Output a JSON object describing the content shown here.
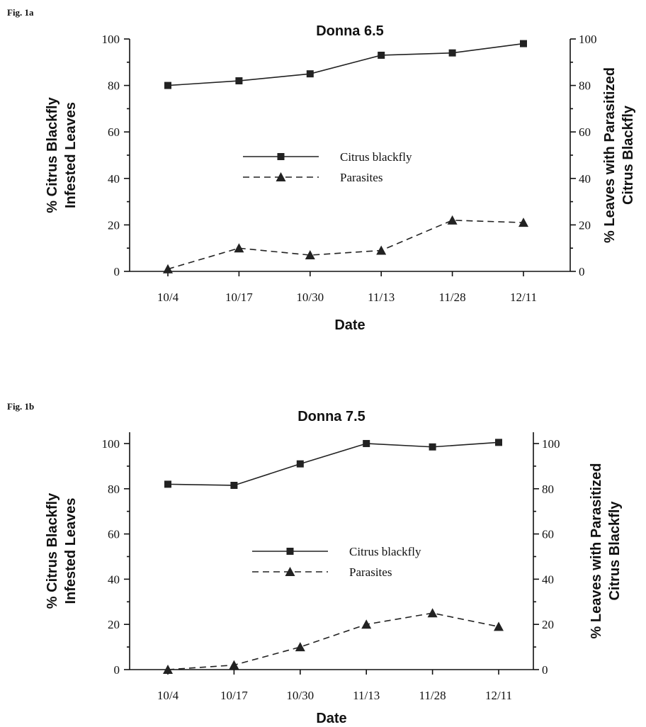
{
  "chart_data": [
    {
      "type": "line",
      "panel_label": "Fig. 1a",
      "title": "Donna 6.5",
      "xlabel": "Date",
      "ylabel_left": [
        "% Citrus Blackfly",
        "Infested Leaves"
      ],
      "ylabel_right": [
        "% Leaves with Parasitized",
        "Citrus Blackfly"
      ],
      "categories": [
        "10/4",
        "10/17",
        "10/30",
        "11/13",
        "11/28",
        "12/11"
      ],
      "ylim": [
        0,
        100
      ],
      "yticks": [
        0,
        20,
        40,
        60,
        80,
        100
      ],
      "series": [
        {
          "name": "Citrus blackfly",
          "axis": "left",
          "marker": "square",
          "dash": "solid",
          "values": [
            80,
            82,
            85,
            93,
            94,
            98
          ]
        },
        {
          "name": "Parasites",
          "axis": "right",
          "marker": "triangle",
          "dash": "dashed",
          "values": [
            1,
            10,
            7,
            9,
            22,
            21
          ]
        }
      ]
    },
    {
      "type": "line",
      "panel_label": "Fig. 1b",
      "title": "Donna 7.5",
      "xlabel": "Date",
      "ylabel_left": [
        "% Citrus Blackfly",
        "Infested Leaves"
      ],
      "ylabel_right": [
        "% Leaves with Parasitized",
        "Citrus Blackfly"
      ],
      "categories": [
        "10/4",
        "10/17",
        "10/30",
        "11/13",
        "11/28",
        "12/11"
      ],
      "ylim": [
        0,
        105
      ],
      "yticks": [
        0,
        20,
        40,
        60,
        80,
        100
      ],
      "yticks_right": [
        0,
        20,
        40,
        60,
        80,
        100
      ],
      "series": [
        {
          "name": "Citrus blackfly",
          "axis": "left",
          "marker": "square",
          "dash": "solid",
          "values": [
            82,
            81.5,
            91,
            100,
            98.5,
            100.5
          ]
        },
        {
          "name": "Parasites",
          "axis": "right",
          "marker": "triangle",
          "dash": "dashed",
          "values": [
            0,
            2,
            10,
            20,
            25,
            19
          ]
        }
      ]
    }
  ]
}
